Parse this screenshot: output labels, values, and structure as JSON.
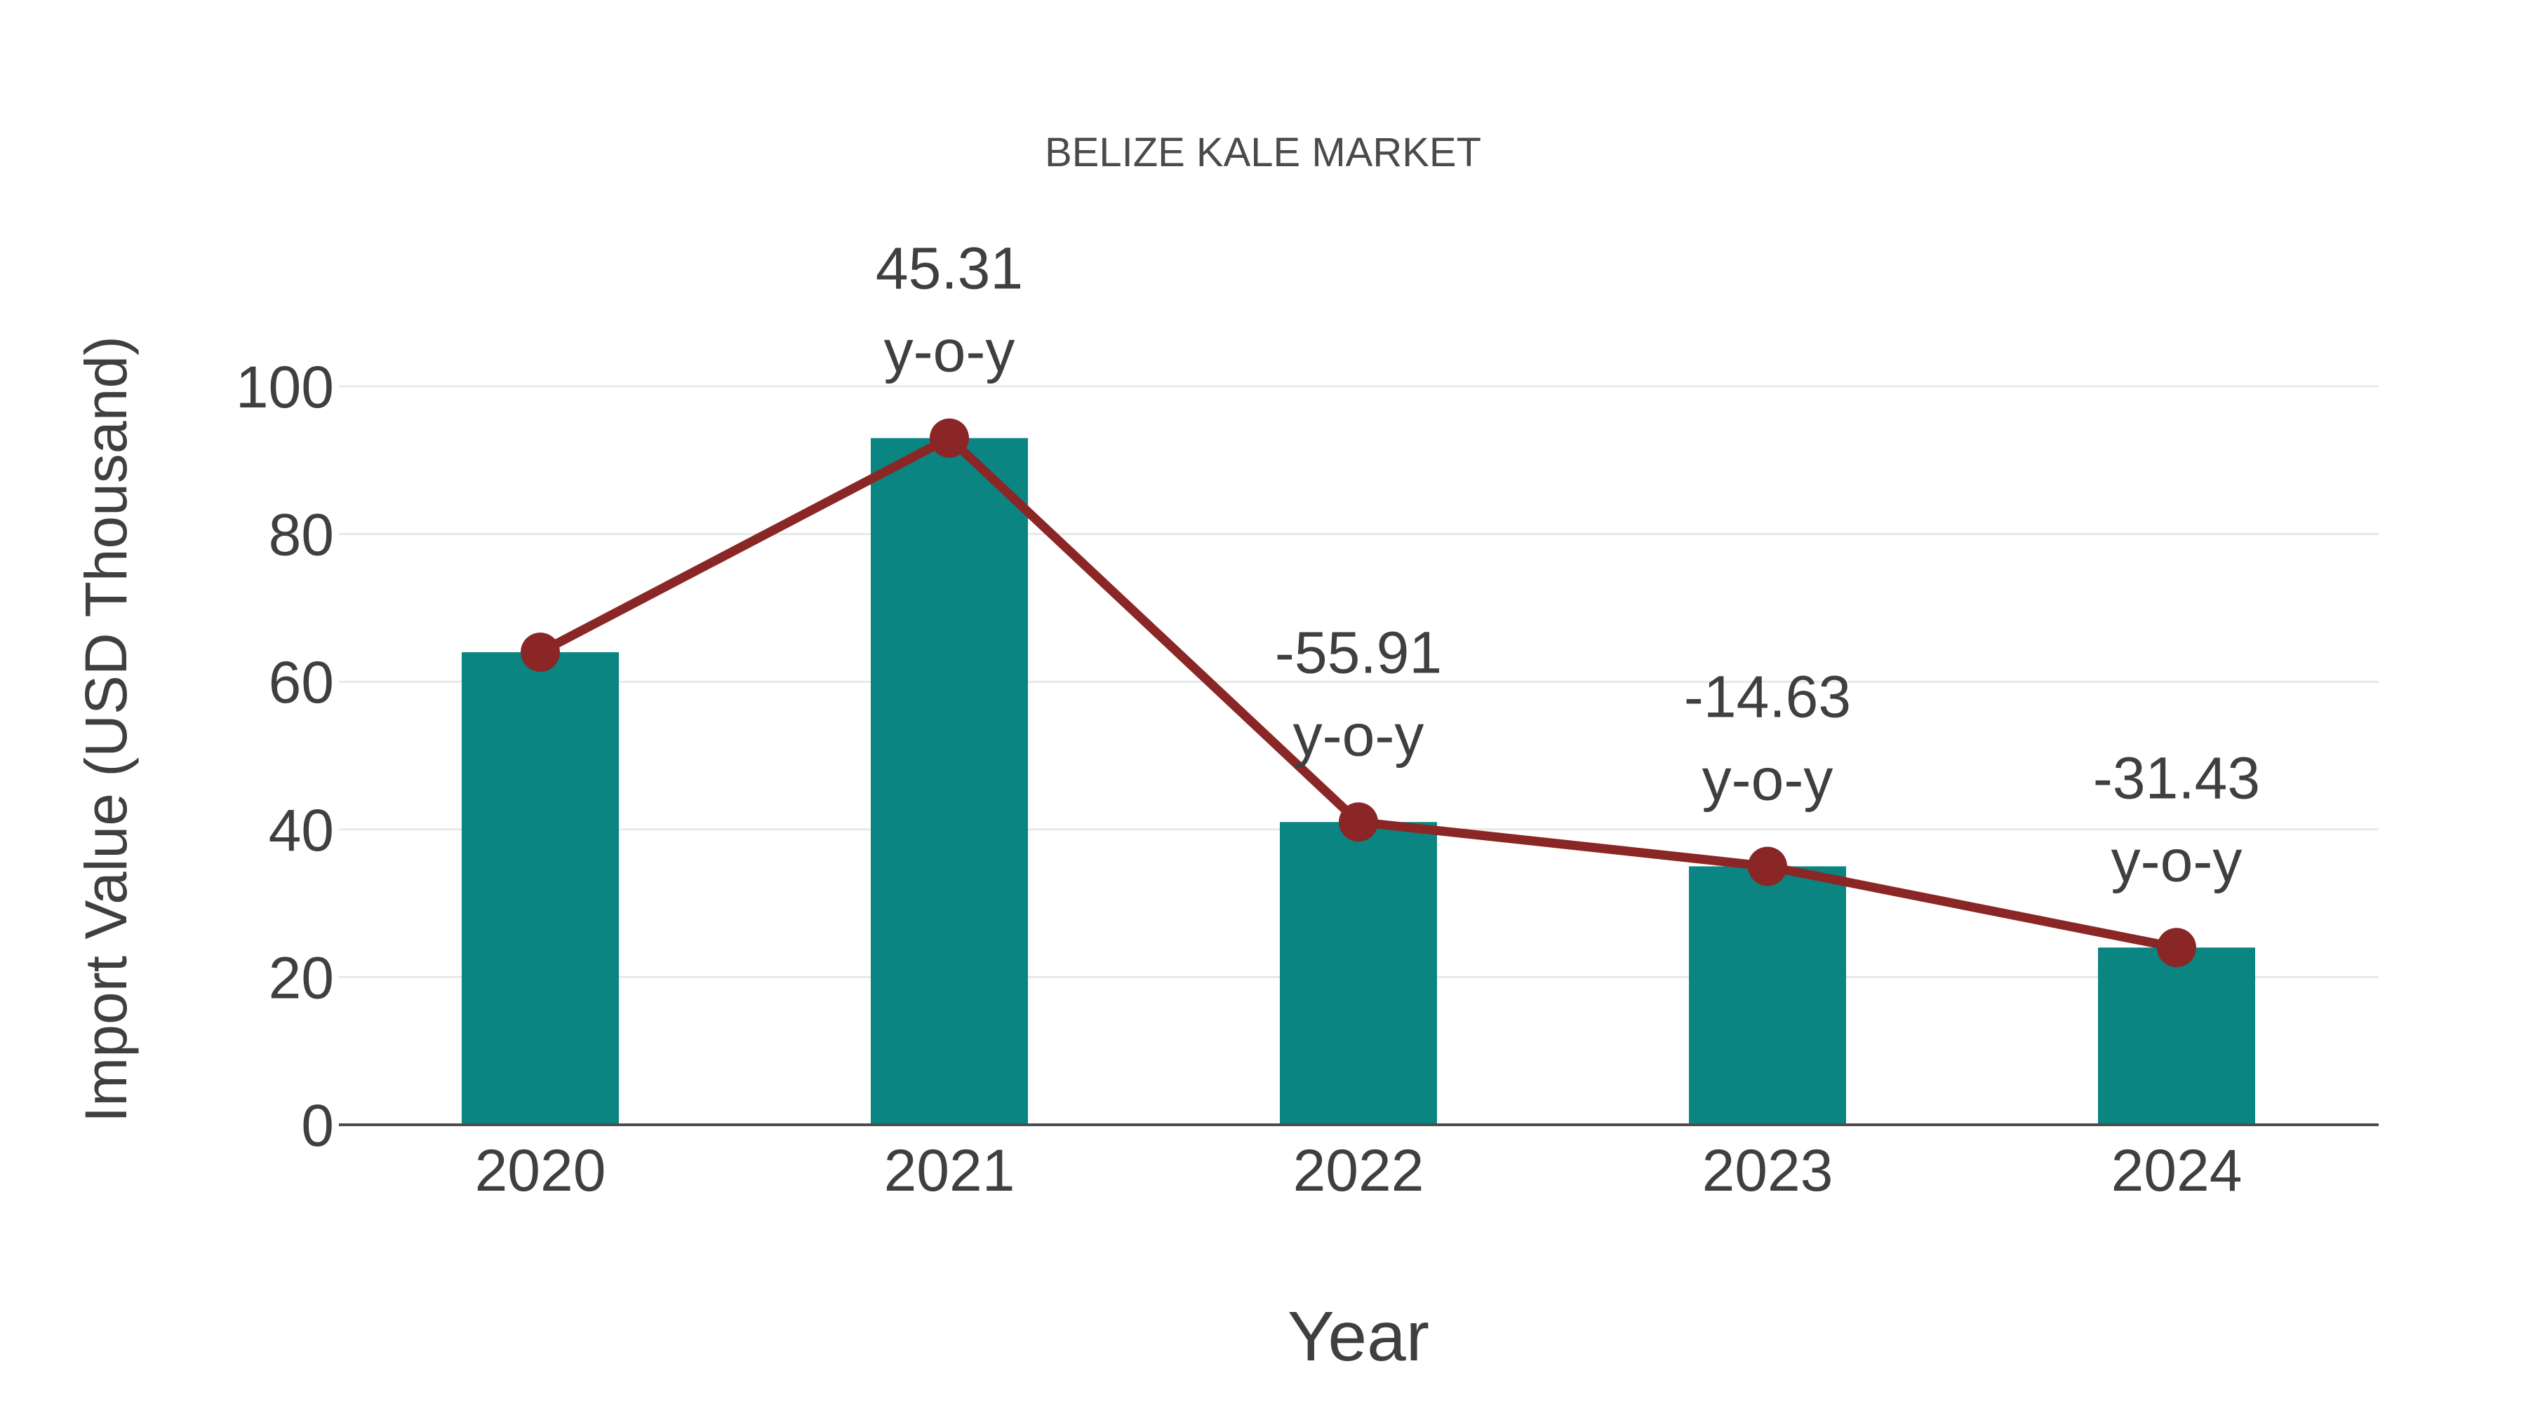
{
  "page": {
    "background": "#ffffff"
  },
  "chart_data": {
    "type": "bar",
    "title": "BELIZE KALE MARKET",
    "xlabel": "Year",
    "ylabel": "Import Value (USD Thousand)",
    "categories": [
      "2020",
      "2021",
      "2022",
      "2023",
      "2024"
    ],
    "series": [
      {
        "name": "import-value-bars",
        "type": "bar",
        "values": [
          64,
          93,
          41,
          35,
          24
        ],
        "color": "#0a8582"
      },
      {
        "name": "import-value-line",
        "type": "line",
        "values": [
          64,
          93,
          41,
          35,
          24
        ],
        "color": "#8b2626"
      }
    ],
    "annotations": [
      {
        "category": "2021",
        "category_index": 1,
        "line1": "45.31",
        "line2": "y-o-y"
      },
      {
        "category": "2022",
        "category_index": 2,
        "line1": "-55.91",
        "line2": "y-o-y"
      },
      {
        "category": "2023",
        "category_index": 3,
        "line1": "-14.63",
        "line2": "y-o-y"
      },
      {
        "category": "2024",
        "category_index": 4,
        "line1": "-31.43",
        "line2": "y-o-y"
      }
    ],
    "yticks": [
      "0",
      "20",
      "40",
      "60",
      "80",
      "100"
    ],
    "ylim": [
      0,
      100
    ],
    "grid": "horizontal",
    "legend": "none",
    "colors": {
      "bar": "#0a8582",
      "line": "#8b2626",
      "marker": "#8b2626",
      "tick_text": "#3f3f3f",
      "title_text": "#4a4a4a",
      "annotation_text": "#3f3f3f",
      "gridline": "#e8e8e8",
      "axis_line": "#4d4d4d",
      "background": "#ffffff"
    }
  }
}
